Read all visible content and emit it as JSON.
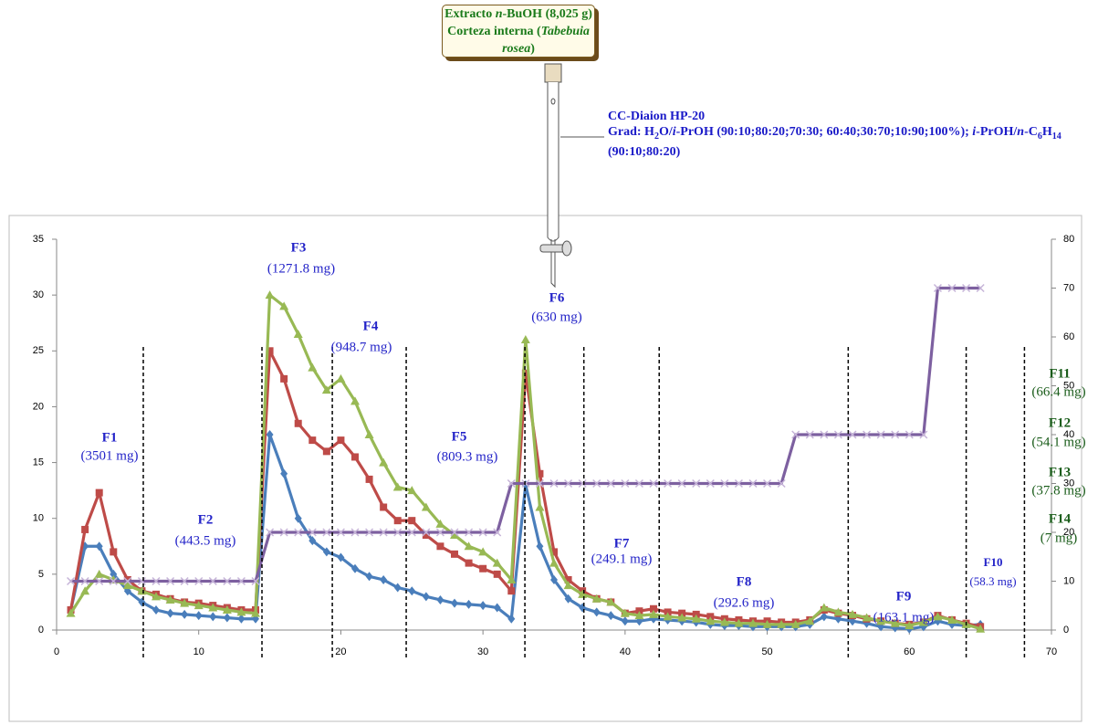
{
  "column": {
    "extract_lines": [
      [
        "Extracto ",
        "n",
        "-BuOH (8,025 g)"
      ],
      [
        "Corteza interna (",
        "Tabebuia rosea",
        ")"
      ]
    ],
    "method": "CC-Diaion HP-20",
    "gradient": [
      "Grad: H",
      "2",
      "O/",
      "i",
      "-PrOH (90:10;80:20;70:30; 60:40;30:70;10:90;100%); ",
      "i",
      "-PrOH/",
      "n",
      "-C",
      "6",
      "H",
      "14",
      " (90:10;80:20)"
    ]
  },
  "chart_data": {
    "type": "line",
    "x": [
      1,
      2,
      3,
      4,
      5,
      6,
      7,
      8,
      9,
      10,
      11,
      12,
      13,
      14,
      15,
      16,
      17,
      18,
      19,
      20,
      21,
      22,
      23,
      24,
      25,
      26,
      27,
      28,
      29,
      30,
      31,
      32,
      33,
      34,
      35,
      36,
      37,
      38,
      39,
      40,
      41,
      42,
      43,
      44,
      45,
      46,
      47,
      48,
      49,
      50,
      51,
      52,
      53,
      54,
      55,
      56,
      57,
      58,
      59,
      60,
      61,
      62,
      63,
      64,
      65
    ],
    "xlim": [
      0,
      70
    ],
    "xticks": [
      0,
      10,
      20,
      30,
      40,
      50,
      60,
      70
    ],
    "ylim": [
      0,
      35
    ],
    "yticks": [
      0,
      5,
      10,
      15,
      20,
      25,
      30,
      35
    ],
    "y2lim": [
      0,
      80
    ],
    "y2ticks": [
      0,
      10,
      20,
      30,
      40,
      50,
      60,
      70,
      80
    ],
    "series": [
      {
        "color": "#4a7ebb",
        "marker": "diamond",
        "values": [
          1.8,
          7.5,
          7.5,
          5,
          3.5,
          2.5,
          1.8,
          1.5,
          1.4,
          1.3,
          1.2,
          1.1,
          1.0,
          1.0,
          17.5,
          14,
          10,
          8,
          7,
          6.5,
          5.5,
          4.8,
          4.5,
          3.8,
          3.5,
          3,
          2.7,
          2.4,
          2.3,
          2.2,
          2,
          1.0,
          13,
          7.5,
          4.5,
          2.8,
          2.0,
          1.6,
          1.3,
          0.8,
          0.8,
          1.0,
          0.9,
          0.8,
          0.7,
          0.5,
          0.4,
          0.4,
          0.3,
          0.3,
          0.3,
          0.3,
          0.5,
          1.2,
          1.0,
          0.8,
          0.6,
          0.3,
          0.2,
          0.1,
          0.3,
          0.8,
          0.5,
          0.4,
          0.5
        ]
      },
      {
        "color": "#be4b48",
        "marker": "square",
        "values": [
          1.8,
          9,
          12.3,
          7,
          4.5,
          3.5,
          3.2,
          2.8,
          2.5,
          2.4,
          2.2,
          2.0,
          1.8,
          1.8,
          25,
          22.5,
          18.5,
          17,
          16,
          17,
          15.5,
          13.5,
          11,
          9.8,
          9.8,
          8.5,
          7.5,
          6.8,
          6,
          5.5,
          5,
          3.5,
          23,
          14,
          7,
          4.5,
          3.5,
          2.8,
          2.5,
          1.5,
          1.7,
          1.9,
          1.6,
          1.5,
          1.4,
          1.2,
          1.0,
          0.9,
          0.8,
          0.8,
          0.7,
          0.7,
          0.9,
          1.8,
          1.5,
          1.3,
          1.0,
          0.8,
          0.6,
          0.5,
          0.7,
          1.3,
          0.9,
          0.6,
          0.3
        ]
      },
      {
        "color": "#98b954",
        "marker": "triangle",
        "values": [
          1.5,
          3.5,
          5,
          4.5,
          4,
          3.5,
          3,
          2.7,
          2.4,
          2.2,
          2.0,
          1.8,
          1.6,
          1.5,
          30,
          29,
          26.5,
          23.5,
          21.5,
          22.5,
          20.5,
          17.5,
          15,
          12.8,
          12.5,
          11,
          9.5,
          8.5,
          7.5,
          7,
          6,
          4.5,
          26,
          11,
          6,
          4,
          3.2,
          2.8,
          2.5,
          1.5,
          1.3,
          1.4,
          1.2,
          1.1,
          1.0,
          0.8,
          0.7,
          0.6,
          0.6,
          0.5,
          0.5,
          0.5,
          0.8,
          2,
          1.6,
          1.4,
          1.1,
          0.8,
          0.6,
          0.4,
          0.7,
          1.2,
          0.9,
          0.5,
          0.1
        ]
      },
      {
        "color": "#7d60a0",
        "marker": "x",
        "axis": "y2",
        "values": [
          10,
          10,
          10,
          10,
          10,
          10,
          10,
          10,
          10,
          10,
          10,
          10,
          10,
          10,
          20,
          20,
          20,
          20,
          20,
          20,
          20,
          20,
          20,
          20,
          20,
          20,
          20,
          20,
          20,
          20,
          20,
          30,
          30,
          30,
          30,
          30,
          30,
          30,
          30,
          30,
          30,
          30,
          30,
          30,
          30,
          30,
          30,
          30,
          30,
          30,
          30,
          40,
          40,
          40,
          40,
          40,
          40,
          40,
          40,
          40,
          40,
          70,
          70,
          70,
          70
        ]
      }
    ],
    "cuts": [
      6.1,
      14.45,
      19.4,
      24.6,
      32.95,
      37.1,
      42.4,
      55.7,
      64,
      68.1
    ],
    "annotations": [
      {
        "label": "F1",
        "mass": "(3501 mg)"
      },
      {
        "label": "F2",
        "mass": "(443.5 mg)"
      },
      {
        "label": "F3",
        "mass": "(1271.8 mg)"
      },
      {
        "label": "F4",
        "mass": "(948.7 mg)"
      },
      {
        "label": "F5",
        "mass": "(809.3 mg)"
      },
      {
        "label": "F6",
        "mass": "(630 mg)"
      },
      {
        "label": "F7",
        "mass": "(249.1 mg)"
      },
      {
        "label": "F8",
        "mass": "(292.6 mg)"
      },
      {
        "label": "F9",
        "mass": "(163.1 mg)"
      },
      {
        "label": "F10",
        "mass": "(58.3 mg)"
      },
      {
        "label": "F11",
        "mass": "(66.4 mg)"
      },
      {
        "label": "F12",
        "mass": "(54.1 mg)"
      },
      {
        "label": "F13",
        "mass": "(37.8 mg)"
      },
      {
        "label": "F14",
        "mass": "(7 mg)"
      }
    ]
  }
}
